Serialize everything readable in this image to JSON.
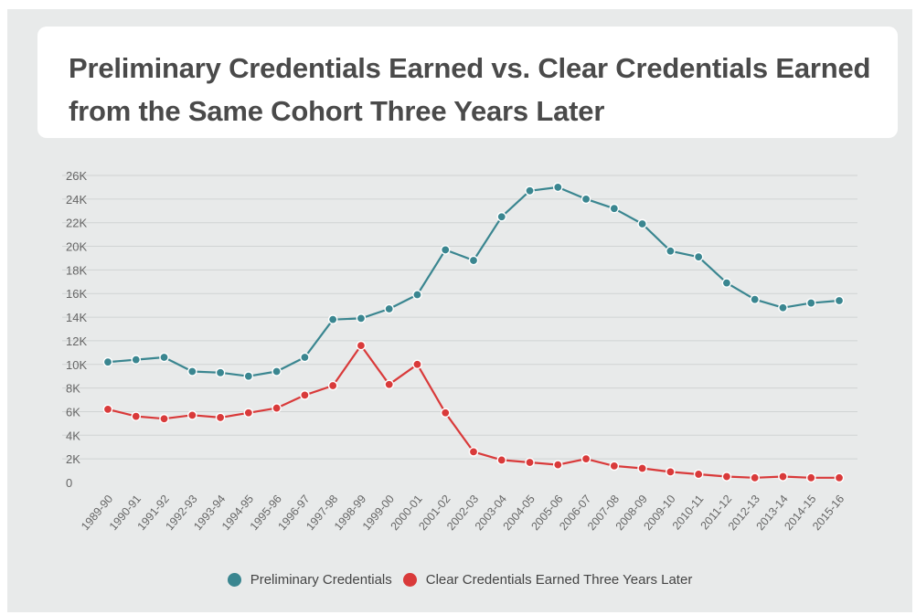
{
  "title": "Preliminary Credentials Earned vs. Clear Credentials Earned from the Same Cohort Three Years Later",
  "colors": {
    "preliminary": "#3a8690",
    "clear": "#d93a3a",
    "grid": "#d0d3d3"
  },
  "chart_data": {
    "type": "line",
    "title": "Preliminary Credentials Earned vs. Clear Credentials Earned from the Same Cohort Three Years Later",
    "xlabel": "",
    "ylabel": "",
    "ylim": [
      0,
      26000
    ],
    "yticks": [
      {
        "value": 0,
        "label": "0"
      },
      {
        "value": 2000,
        "label": "2K"
      },
      {
        "value": 4000,
        "label": "4K"
      },
      {
        "value": 6000,
        "label": "6K"
      },
      {
        "value": 8000,
        "label": "8K"
      },
      {
        "value": 10000,
        "label": "10K"
      },
      {
        "value": 12000,
        "label": "12K"
      },
      {
        "value": 14000,
        "label": "14K"
      },
      {
        "value": 16000,
        "label": "16K"
      },
      {
        "value": 18000,
        "label": "18K"
      },
      {
        "value": 20000,
        "label": "20K"
      },
      {
        "value": 22000,
        "label": "22K"
      },
      {
        "value": 24000,
        "label": "24K"
      },
      {
        "value": 26000,
        "label": "26K"
      }
    ],
    "grid": true,
    "legend_position": "bottom-center",
    "categories": [
      "1989-90",
      "1990-91",
      "1991-92",
      "1992-93",
      "1993-94",
      "1994-95",
      "1995-96",
      "1996-97",
      "1997-98",
      "1998-99",
      "1999-00",
      "2000-01",
      "2001-02",
      "2002-03",
      "2003-04",
      "2004-05",
      "2005-06",
      "2006-07",
      "2007-08",
      "2008-09",
      "2009-10",
      "2010-11",
      "2011-12",
      "2012-13",
      "2013-14",
      "2014-15",
      "2015-16"
    ],
    "series": [
      {
        "name": "Preliminary Credentials",
        "values": [
          10200,
          10400,
          10600,
          9400,
          9300,
          9000,
          9400,
          10600,
          13800,
          13900,
          14700,
          15900,
          19700,
          18800,
          22500,
          24700,
          25000,
          24000,
          23200,
          21900,
          19600,
          19100,
          16900,
          15500,
          14800,
          15200,
          15400
        ]
      },
      {
        "name": "Clear Credentials Earned Three Years Later",
        "values": [
          6200,
          5600,
          5400,
          5700,
          5500,
          5900,
          6300,
          7400,
          8200,
          11600,
          8300,
          10000,
          5900,
          2600,
          1900,
          1700,
          1500,
          2000,
          1400,
          1200,
          900,
          700,
          500,
          400,
          500,
          400,
          400
        ]
      }
    ]
  }
}
